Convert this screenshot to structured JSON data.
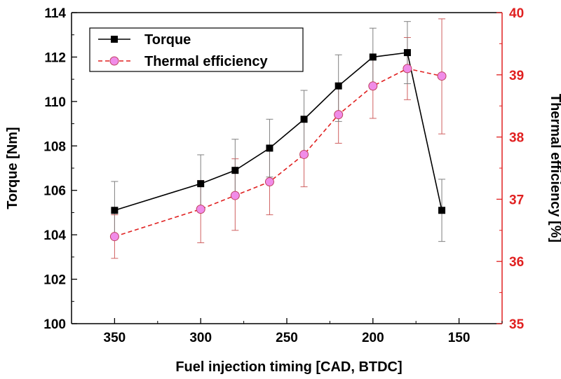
{
  "chart_data": {
    "type": "line",
    "xlabel": "Fuel injection timing [CAD, BTDC]",
    "ylabel_left": "Torque [Nm]",
    "ylabel_right": "Thermal efficiency [%]",
    "x_reversed": true,
    "xlim": [
      375,
      125
    ],
    "xticks": [
      350,
      300,
      250,
      200,
      150
    ],
    "ylim_left": [
      100,
      114
    ],
    "yticks_left": [
      100,
      102,
      104,
      106,
      108,
      110,
      112,
      114
    ],
    "ylim_right": [
      35,
      40
    ],
    "yticks_right": [
      35,
      36,
      37,
      38,
      39,
      40
    ],
    "grid": false,
    "legend_position": "top-left",
    "colors": {
      "torque": "#000000",
      "efficiency_line": "#e02020",
      "efficiency_marker": "#f08ce8",
      "right_axis": "#e02020",
      "torque_error": "#808080",
      "efficiency_error": "#d06060"
    },
    "series": [
      {
        "name": "Torque",
        "axis": "left",
        "marker": "square",
        "line": "solid",
        "x": [
          350,
          300,
          280,
          260,
          240,
          220,
          200,
          180,
          160
        ],
        "y": [
          105.1,
          106.3,
          106.9,
          107.9,
          109.2,
          110.7,
          112.0,
          112.2,
          105.1
        ],
        "err_low": [
          103.9,
          105.2,
          105.7,
          106.6,
          107.7,
          109.1,
          110.6,
          110.8,
          103.7
        ],
        "err_high": [
          106.4,
          107.6,
          108.3,
          109.2,
          110.5,
          112.1,
          113.3,
          113.6,
          106.5
        ]
      },
      {
        "name": "Thermal efficiency",
        "axis": "right",
        "marker": "circle",
        "line": "dashed",
        "x": [
          350,
          300,
          280,
          260,
          240,
          220,
          200,
          180,
          160
        ],
        "y": [
          36.4,
          36.84,
          37.06,
          37.28,
          37.72,
          38.36,
          38.82,
          39.1,
          38.98
        ],
        "err_low": [
          36.05,
          36.3,
          36.5,
          36.75,
          37.2,
          37.9,
          38.3,
          38.6,
          38.05
        ],
        "err_high": [
          36.75,
          37.3,
          37.65,
          37.85,
          38.3,
          38.85,
          39.3,
          39.6,
          39.9
        ]
      }
    ]
  }
}
